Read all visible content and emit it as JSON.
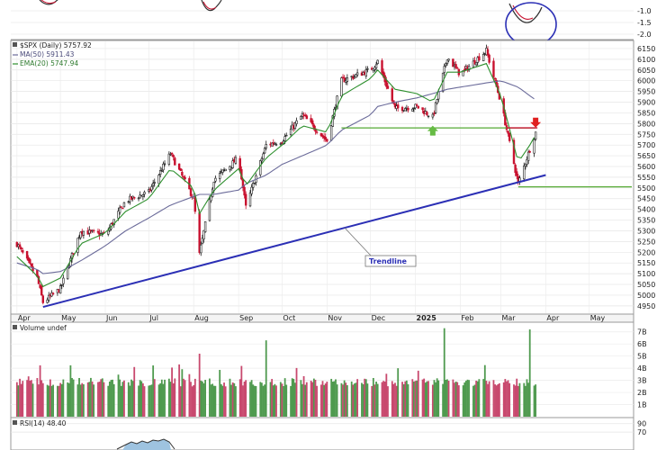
{
  "chart_data": [
    {
      "type": "candlestick",
      "legend": {
        "symbol_line": "$SPX (Daily) 5757.92",
        "ma_line": "MA(50) 5911.43",
        "ema_line": "EMA(20) 5747.94"
      },
      "colors": {
        "up": "#ffffff",
        "down": "#c8102e",
        "ma50": "#6b6b9a",
        "ema20": "#2d8f2d",
        "trendline": "#2b2fb5",
        "support": "#55aa33",
        "resistance": "#c8102e"
      },
      "x_tick_labels": [
        "Apr",
        "May",
        "Jun",
        "Jul",
        "Aug",
        "Sep",
        "Oct",
        "Nov",
        "Dec",
        "2025",
        "Feb",
        "Mar",
        "Apr",
        "May"
      ],
      "y_tick_labels": [
        "6150",
        "6100",
        "6050",
        "6000",
        "5950",
        "5900",
        "5850",
        "5800",
        "5750",
        "5700",
        "5650",
        "5600",
        "5550",
        "5500",
        "5450",
        "5400",
        "5350",
        "5300",
        "5250",
        "5200",
        "5150",
        "5100",
        "5050",
        "5000",
        "4950"
      ],
      "ylim": [
        4920,
        6175
      ],
      "dates": [
        "2024-04-01",
        "2024-04-15",
        "2024-04-19",
        "2024-05-01",
        "2024-05-15",
        "2024-06-01",
        "2024-06-15",
        "2024-07-01",
        "2024-07-16",
        "2024-08-01",
        "2024-08-05",
        "2024-08-15",
        "2024-09-01",
        "2024-09-06",
        "2024-09-20",
        "2024-10-01",
        "2024-10-15",
        "2024-11-01",
        "2024-11-11",
        "2024-12-01",
        "2024-12-06",
        "2024-12-18",
        "2025-01-02",
        "2025-01-13",
        "2025-01-23",
        "2025-02-01",
        "2025-02-19",
        "2025-03-01",
        "2025-03-13",
        "2025-03-21",
        "2025-03-25"
      ],
      "closes": [
        5240,
        5080,
        4967,
        5030,
        5300,
        5280,
        5440,
        5480,
        5660,
        5450,
        5190,
        5540,
        5640,
        5410,
        5700,
        5720,
        5840,
        5720,
        6000,
        6050,
        6090,
        5870,
        5880,
        5830,
        6110,
        6030,
        6140,
        5900,
        5520,
        5680,
        5758
      ],
      "ma50": [
        5150,
        5120,
        5100,
        5110,
        5160,
        5230,
        5300,
        5360,
        5420,
        5460,
        5470,
        5470,
        5490,
        5520,
        5560,
        5610,
        5650,
        5700,
        5770,
        5840,
        5880,
        5900,
        5920,
        5940,
        5960,
        5970,
        5990,
        6000,
        5970,
        5930,
        5911
      ],
      "ema20": [
        5180,
        5090,
        5040,
        5080,
        5240,
        5290,
        5390,
        5450,
        5590,
        5500,
        5380,
        5490,
        5590,
        5510,
        5640,
        5700,
        5790,
        5760,
        5930,
        6010,
        6050,
        5960,
        5940,
        5900,
        6040,
        6040,
        6080,
        5930,
        5620,
        5700,
        5748
      ],
      "annotations": {
        "trendline_label": "Trendline",
        "trendline": {
          "from": [
            "2024-04-19",
            4945
          ],
          "to": [
            "2025-04-01",
            5560
          ]
        },
        "support_level": {
          "value": 5505,
          "from": "2025-03-13"
        },
        "resistance_level": {
          "value": 5780,
          "from": "2024-11-11",
          "to": "2025-03-25"
        },
        "up_arrow_at": [
          "2025-01-13",
          5765
        ],
        "down_arrow_at": [
          "2025-03-25",
          5790
        ]
      }
    },
    {
      "type": "bar",
      "legend": {
        "label": "Volume undef"
      },
      "y_tick_labels": [
        "7B",
        "6B",
        "5B",
        "4B",
        "3B",
        "2B",
        "1B"
      ],
      "ylim": [
        0,
        7.5
      ],
      "unit": "B",
      "typical_values": [
        2.5,
        3.2
      ],
      "spikes": [
        {
          "date": "2024-06-21",
          "value": 4.1
        },
        {
          "date": "2024-08-05",
          "value": 5.2
        },
        {
          "date": "2024-09-20",
          "value": 6.3
        },
        {
          "date": "2024-12-20",
          "value": 4.0
        },
        {
          "date": "2025-01-21",
          "value": 7.3
        },
        {
          "date": "2025-03-21",
          "value": 7.2
        }
      ]
    },
    {
      "type": "line",
      "legend": {
        "label": "RSI(14) 48.40"
      },
      "y_tick_labels": [
        "90",
        "70"
      ],
      "ylim": [
        30,
        100
      ]
    }
  ]
}
